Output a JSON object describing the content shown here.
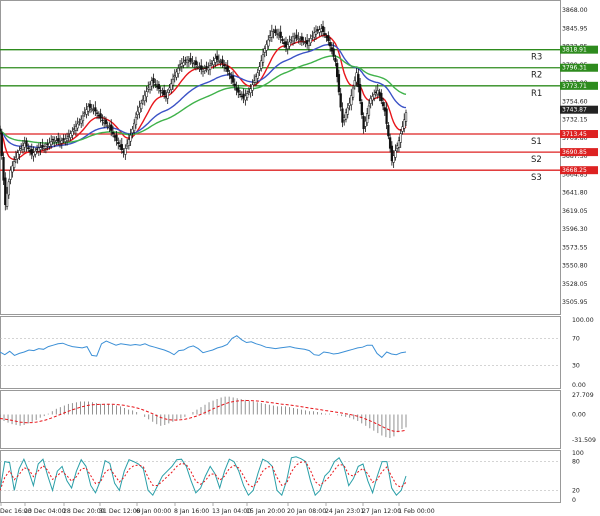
{
  "chart_data": [
    {
      "type": "candlestick",
      "title": "",
      "grid": false,
      "ylim": [
        3505.95,
        3871.0
      ],
      "y_ticks": [
        "3868.00",
        "3845.95",
        "3822.95",
        "3799.95",
        "3777.00",
        "3754.60",
        "3732.15",
        "3709.80",
        "3687.30",
        "3664.85",
        "3641.80",
        "3619.05",
        "3596.30",
        "3573.55",
        "3550.80",
        "3528.05",
        "3505.95"
      ],
      "x_labels": [
        "Dec 16:00",
        "23 Dec 04:00",
        "28 Dec 20:00",
        "31 Dec 12:00",
        "6 Jan 00:00",
        "8 Jan 16:00",
        "13 Jan 04:00",
        "15 Jan 20:00",
        "20 Jan 08:00",
        "24 Jan 23:01",
        "27 Jan 12:00",
        "1 Feb 00:00"
      ],
      "levels": [
        {
          "label": "R3",
          "value": 3818.91,
          "badge": "3818.91",
          "color": "#2e8b1e"
        },
        {
          "label": "R2",
          "value": 3796.31,
          "badge": "3796.31",
          "color": "#2e8b1e"
        },
        {
          "label": "R1",
          "value": 3773.71,
          "badge": "3773.71",
          "color": "#2e8b1e"
        },
        {
          "label": "S1",
          "value": 3713.45,
          "badge": "3713.45",
          "color": "#dd2222"
        },
        {
          "label": "S2",
          "value": 3690.85,
          "badge": "3690.85",
          "color": "#dd2222"
        },
        {
          "label": "S3",
          "value": 3668.25,
          "badge": "3668.25",
          "color": "#dd2222"
        }
      ],
      "current_price": {
        "value": 3743.87,
        "badge": "3743.87"
      },
      "moving_averages": [
        {
          "color": "#e8161b"
        },
        {
          "color": "#3b52c6"
        },
        {
          "color": "#3fb24a"
        }
      ],
      "price_path": [
        [
          0,
          3717
        ],
        [
          3,
          3625
        ],
        [
          6,
          3668
        ],
        [
          10,
          3690
        ],
        [
          14,
          3702
        ],
        [
          18,
          3688
        ],
        [
          22,
          3696
        ],
        [
          26,
          3698
        ],
        [
          30,
          3706
        ],
        [
          34,
          3704
        ],
        [
          38,
          3708
        ],
        [
          42,
          3720
        ],
        [
          46,
          3732
        ],
        [
          50,
          3748
        ],
        [
          54,
          3742
        ],
        [
          58,
          3730
        ],
        [
          62,
          3722
        ],
        [
          66,
          3705
        ],
        [
          70,
          3690
        ],
        [
          74,
          3712
        ],
        [
          78,
          3742
        ],
        [
          82,
          3762
        ],
        [
          86,
          3780
        ],
        [
          90,
          3770
        ],
        [
          94,
          3760
        ],
        [
          98,
          3782
        ],
        [
          102,
          3800
        ],
        [
          106,
          3806
        ],
        [
          110,
          3802
        ],
        [
          114,
          3794
        ],
        [
          118,
          3796
        ],
        [
          122,
          3808
        ],
        [
          126,
          3802
        ],
        [
          130,
          3788
        ],
        [
          134,
          3768
        ],
        [
          138,
          3758
        ],
        [
          142,
          3770
        ],
        [
          146,
          3790
        ],
        [
          150,
          3820
        ],
        [
          154,
          3842
        ],
        [
          158,
          3838
        ],
        [
          162,
          3822
        ],
        [
          166,
          3835
        ],
        [
          170,
          3832
        ],
        [
          174,
          3826
        ],
        [
          178,
          3840
        ],
        [
          182,
          3845
        ],
        [
          186,
          3830
        ],
        [
          190,
          3804
        ],
        [
          194,
          3728
        ],
        [
          198,
          3752
        ],
        [
          202,
          3790
        ],
        [
          206,
          3720
        ],
        [
          210,
          3758
        ],
        [
          214,
          3768
        ],
        [
          218,
          3742
        ],
        [
          222,
          3680
        ],
        [
          226,
          3705
        ],
        [
          230,
          3740
        ]
      ]
    },
    {
      "type": "line",
      "title": "",
      "ylim": [
        0,
        100
      ],
      "y_ticks": [
        "100.00",
        "70",
        "30",
        "0.00"
      ],
      "series": [
        {
          "color": "#3b8fd6"
        }
      ],
      "values": [
        50,
        46,
        51,
        45,
        48,
        50,
        53,
        52,
        55,
        54,
        58,
        60,
        62,
        63,
        60,
        58,
        57,
        56,
        58,
        45,
        44,
        62,
        66,
        63,
        60,
        62,
        61,
        60,
        61,
        60,
        62,
        59,
        57,
        55,
        53,
        50,
        46,
        52,
        53,
        57,
        59,
        55,
        49,
        51,
        53,
        56,
        58,
        61,
        70,
        74,
        68,
        64,
        65,
        62,
        60,
        57,
        56,
        55,
        56,
        57,
        58,
        56,
        55,
        54,
        52,
        46,
        45,
        50,
        49,
        47,
        48,
        50,
        52,
        54,
        56,
        57,
        60,
        60,
        48,
        42,
        50,
        47,
        46,
        49,
        50
      ]
    },
    {
      "type": "bar",
      "title": "",
      "ylim": [
        -31.509,
        27.709
      ],
      "y_ticks": [
        "27.709",
        "0.00",
        "-31.509"
      ],
      "series": [
        {
          "color": "#777777"
        },
        {
          "color": "#e8161b"
        }
      ],
      "values": [
        -5,
        -8,
        -10,
        -12,
        -13,
        -14,
        -13,
        -11,
        -9,
        -7,
        -4,
        -2,
        1,
        4,
        7,
        9,
        11,
        13,
        14,
        15,
        16,
        16,
        16,
        15,
        14,
        13,
        13,
        13,
        12,
        11,
        10,
        8,
        6,
        5,
        3,
        0,
        -3,
        -6,
        -9,
        -12,
        -14,
        -13,
        -11,
        -9,
        -7,
        -5,
        -3,
        0,
        3,
        6,
        9,
        12,
        15,
        17,
        19,
        21,
        22,
        22,
        21,
        20,
        19,
        18,
        17,
        16,
        15,
        14,
        13,
        12,
        11,
        10,
        10,
        10,
        9,
        8,
        7,
        6,
        5,
        4,
        4,
        3,
        2,
        1,
        1,
        0,
        -1,
        -2,
        -3,
        -4,
        -6,
        -8,
        -11,
        -14,
        -17,
        -20,
        -23,
        -26,
        -28,
        -29,
        -27,
        -22,
        -18,
        -16
      ]
    },
    {
      "type": "line",
      "title": "",
      "ylim": [
        0,
        100
      ],
      "y_ticks": [
        "100",
        "80",
        "20",
        "0"
      ],
      "series": [
        {
          "color": "#2a9fa8"
        },
        {
          "color": "#e8161b"
        }
      ],
      "values": [
        20,
        80,
        78,
        20,
        65,
        85,
        60,
        30,
        75,
        85,
        50,
        20,
        60,
        70,
        40,
        25,
        60,
        84,
        70,
        30,
        15,
        40,
        82,
        76,
        35,
        20,
        60,
        84,
        80,
        75,
        65,
        20,
        10,
        30,
        50,
        60,
        70,
        84,
        85,
        70,
        40,
        15,
        25,
        50,
        70,
        55,
        25,
        60,
        85,
        80,
        60,
        30,
        10,
        20,
        55,
        85,
        80,
        70,
        20,
        10,
        40,
        88,
        90,
        86,
        80,
        40,
        10,
        20,
        50,
        60,
        80,
        88,
        70,
        30,
        45,
        70,
        75,
        40,
        15,
        50,
        80,
        80,
        25,
        10,
        20,
        50
      ]
    }
  ]
}
